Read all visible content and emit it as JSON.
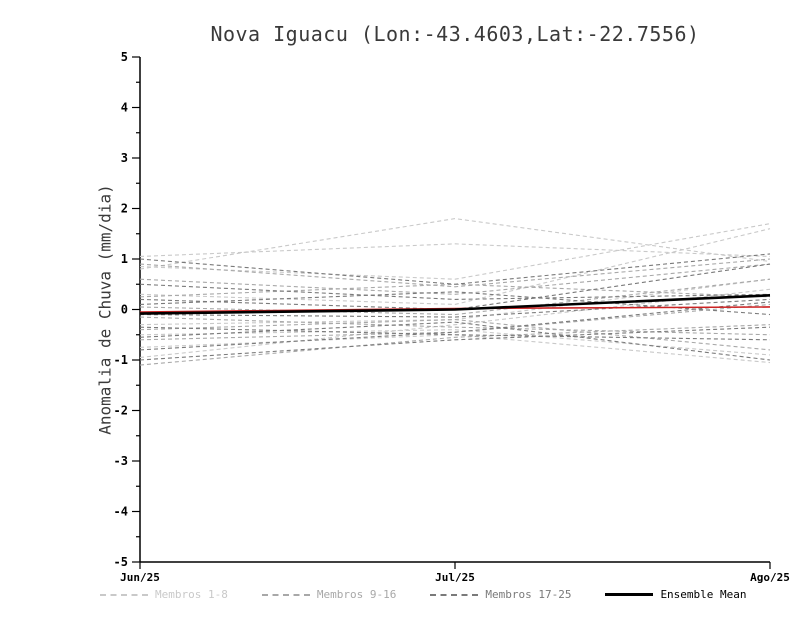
{
  "title": "Nova Iguacu (Lon:-43.4603,Lat:-22.7556)",
  "chart_data": {
    "type": "line",
    "title": "Nova Iguacu (Lon:-43.4603,Lat:-22.7556)",
    "ylabel": "Anomalia de Chuva (mm/dia)",
    "xlabel": "",
    "x_categories": [
      "Jun/25",
      "Jul/25",
      "Ago/25"
    ],
    "ylim": [
      -5,
      5
    ],
    "y_tick_labels": [
      "5",
      "4",
      "3",
      "2",
      "1",
      "0",
      "-1",
      "-2",
      "-3",
      "-4",
      "-5"
    ],
    "grid": false,
    "legend_position": "bottom",
    "legend": [
      {
        "label": "Membros 1-8",
        "color": "#c9c9c9",
        "style": "dashed"
      },
      {
        "label": "Membros 9-16",
        "color": "#a8a8a8",
        "style": "dashed"
      },
      {
        "label": "Membros 17-25",
        "color": "#7a7a7a",
        "style": "dashed"
      },
      {
        "label": "Ensemble Mean",
        "color": "#000000",
        "style": "solid"
      }
    ],
    "series_groups": [
      {
        "name": "Membros 1-8",
        "color": "#c9c9c9",
        "dashed": true,
        "members": [
          [
            1.05,
            1.3,
            1.05
          ],
          [
            0.85,
            0.6,
            1.7
          ],
          [
            0.8,
            1.8,
            0.95
          ],
          [
            0.3,
            0.1,
            1.6
          ],
          [
            -0.3,
            -0.2,
            0.6
          ],
          [
            -0.5,
            -0.4,
            -0.9
          ],
          [
            -0.75,
            -0.5,
            -1.05
          ],
          [
            -0.95,
            -0.3,
            0.4
          ]
        ]
      },
      {
        "name": "Membros 9-16",
        "color": "#a8a8a8",
        "dashed": true,
        "members": [
          [
            0.9,
            0.45,
            1.0
          ],
          [
            0.6,
            0.3,
            0.9
          ],
          [
            0.25,
            0.5,
            0.25
          ],
          [
            0.05,
            -0.1,
            0.6
          ],
          [
            -0.15,
            -0.35,
            -0.5
          ],
          [
            -0.4,
            -0.2,
            -0.8
          ],
          [
            -0.6,
            -0.45,
            0.1
          ],
          [
            -1.1,
            -0.55,
            -0.3
          ]
        ]
      },
      {
        "name": "Membros 17-25",
        "color": "#7a7a7a",
        "dashed": true,
        "members": [
          [
            1.0,
            0.5,
            1.1
          ],
          [
            0.5,
            0.2,
            0.3
          ],
          [
            0.2,
            0.0,
            0.9
          ],
          [
            0.1,
            0.35,
            -0.1
          ],
          [
            -0.1,
            -0.15,
            0.2
          ],
          [
            -0.35,
            -0.5,
            -0.6
          ],
          [
            -0.55,
            -0.25,
            -1.0
          ],
          [
            -0.8,
            -0.45,
            0.15
          ],
          [
            -1.0,
            -0.6,
            -0.35
          ]
        ]
      }
    ],
    "reference_line": {
      "name": "red-line",
      "color": "#cc2222",
      "values": [
        -0.05,
        0.02,
        0.05
      ]
    },
    "ensemble_mean": {
      "label": "Ensemble Mean",
      "color": "#000000",
      "values": [
        -0.08,
        0.0,
        0.28
      ]
    }
  }
}
